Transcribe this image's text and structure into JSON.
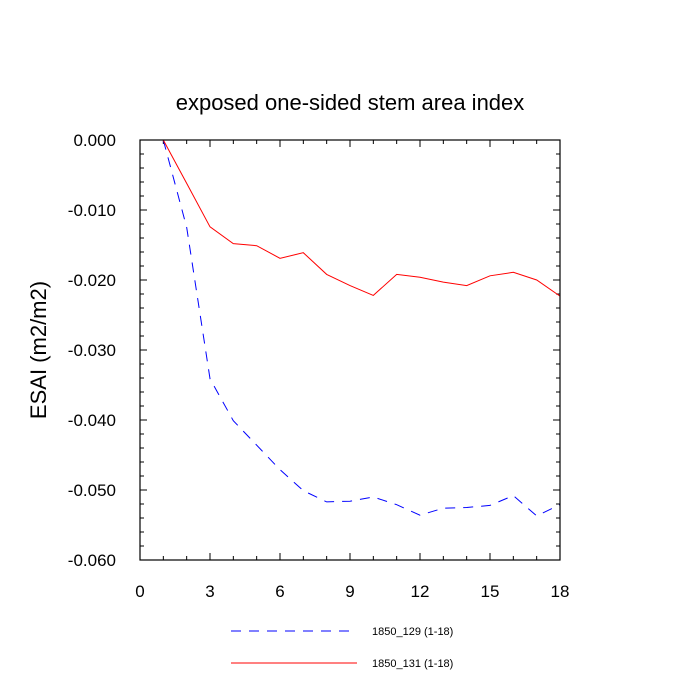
{
  "chart_data": {
    "type": "line",
    "title": "exposed one-sided stem area index",
    "xlabel": "",
    "ylabel": "ESAI  (m2/m2)",
    "xlim": [
      0,
      18
    ],
    "ylim": [
      -0.06,
      0.0
    ],
    "x_ticks": [
      0,
      3,
      6,
      9,
      12,
      15,
      18
    ],
    "x_tick_labels": [
      "0",
      "3",
      "6",
      "9",
      "12",
      "15",
      "18"
    ],
    "y_ticks": [
      0.0,
      -0.01,
      -0.02,
      -0.03,
      -0.04,
      -0.05,
      -0.06
    ],
    "y_tick_labels": [
      "0.000",
      "-0.010",
      "-0.020",
      "-0.030",
      "-0.040",
      "-0.050",
      "-0.060"
    ],
    "grid": false,
    "legend_position": "bottom",
    "x": [
      1,
      2,
      3,
      4,
      5,
      6,
      7,
      8,
      9,
      10,
      11,
      12,
      13,
      14,
      15,
      16,
      17,
      18
    ],
    "series": [
      {
        "name": "1850_129 (1-18)",
        "color": "#0000ff",
        "dash": "dashed",
        "values": [
          0.0,
          -0.0125,
          -0.0341,
          -0.0401,
          -0.0436,
          -0.0471,
          -0.0501,
          -0.0517,
          -0.0516,
          -0.051,
          -0.0521,
          -0.0536,
          -0.0526,
          -0.0525,
          -0.0522,
          -0.0508,
          -0.0537,
          -0.0521
        ]
      },
      {
        "name": "1850_131 (1-18)",
        "color": "#ff0000",
        "dash": "solid",
        "values": [
          0.0,
          -0.0062,
          -0.0124,
          -0.0148,
          -0.0151,
          -0.0169,
          -0.0161,
          -0.0192,
          -0.0208,
          -0.0222,
          -0.0192,
          -0.0196,
          -0.0203,
          -0.0208,
          -0.0194,
          -0.0189,
          -0.02,
          -0.0223
        ]
      }
    ]
  }
}
